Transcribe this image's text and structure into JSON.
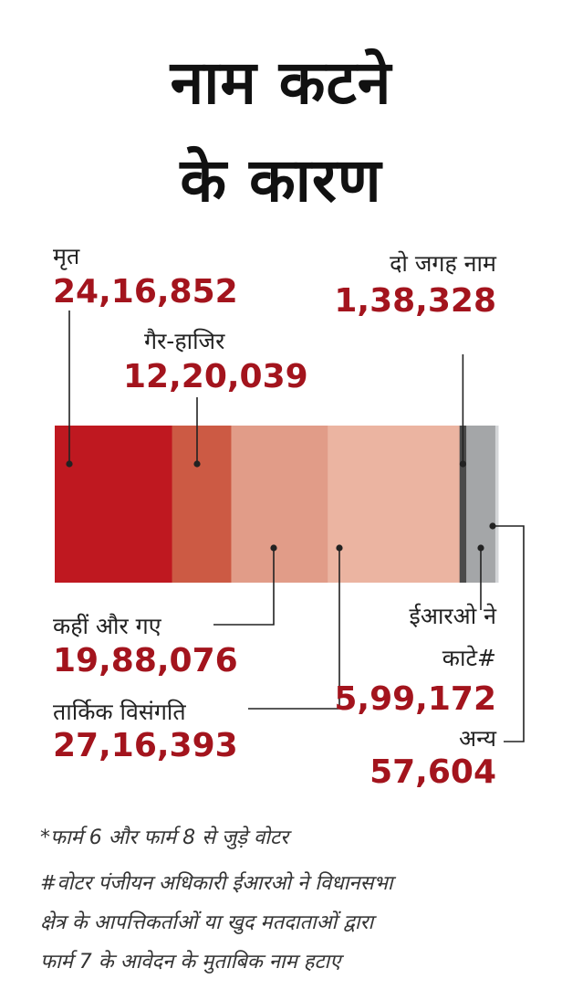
{
  "title": {
    "line1": "नाम कटने",
    "line2": "के कारण"
  },
  "chart_data": {
    "type": "bar",
    "orientation": "horizontal-stacked",
    "categories": [
      "मृत",
      "गैर-हाजिर",
      "कहीं और गए",
      "तार्किक विसंगति",
      "दो जगह नाम",
      "ईआरओ ने काटे#",
      "अन्य"
    ],
    "values": [
      2416852,
      1220039,
      1988076,
      2716393,
      138328,
      599172,
      57604
    ],
    "display_values": [
      "24,16,852",
      "12,20,039",
      "19,88,076",
      "27,16,393",
      "1,38,328",
      "5,99,172",
      "57,604"
    ],
    "colors": [
      "#bf1820",
      "#cc5a44",
      "#e19c88",
      "#ebb4a1",
      "#4a4a4a",
      "#a4a6a8",
      "#d4d6d8"
    ]
  },
  "labels": {
    "dead": "मृत",
    "absent": "गैर-हाजिर",
    "two_places": "दो जगह नाम",
    "moved": "कहीं और गए",
    "logical": "तार्किक विसंगति",
    "ero_line1": "ईआरओ ने",
    "ero_line2": "काटे#",
    "other": "अन्य"
  },
  "footnotes": {
    "line1": "*फार्म 6 और फार्म 8 से जुड़े वोटर",
    "line2": "#वोटर पंजीयन अधिकारी ईआरओ ने विधानसभा",
    "line3": "क्षेत्र के आपत्तिकर्ताओं या खुद मतदाताओं द्वारा",
    "line4": "फार्म 7 के आवेदन के मुताबिक नाम हटाए"
  }
}
